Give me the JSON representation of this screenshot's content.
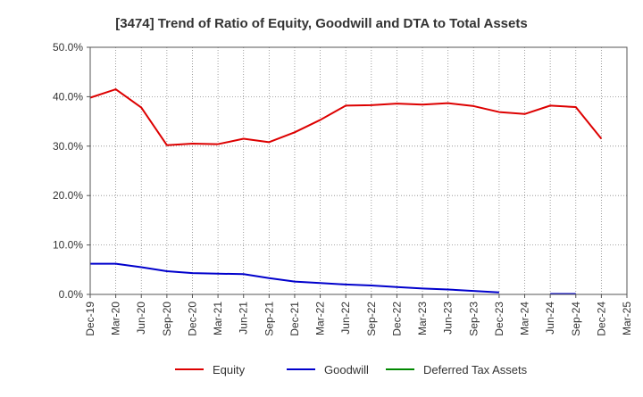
{
  "chart_data": {
    "type": "line",
    "title": "[3474]  Trend of Ratio of Equity, Goodwill and DTA to Total Assets",
    "xlabel": "",
    "ylabel": "",
    "ylim": [
      0,
      50
    ],
    "yticks": [
      0,
      10,
      20,
      30,
      40,
      50
    ],
    "ytick_labels": [
      "0.0%",
      "10.0%",
      "20.0%",
      "30.0%",
      "40.0%",
      "50.0%"
    ],
    "categories": [
      "Dec-19",
      "Mar-20",
      "Jun-20",
      "Sep-20",
      "Dec-20",
      "Mar-21",
      "Jun-21",
      "Sep-21",
      "Dec-21",
      "Mar-22",
      "Jun-22",
      "Sep-22",
      "Dec-22",
      "Mar-23",
      "Jun-23",
      "Sep-23",
      "Dec-23",
      "Mar-24",
      "Jun-24",
      "Sep-24",
      "Dec-24",
      "Mar-25"
    ],
    "grid": true,
    "legend_position": "bottom",
    "series": [
      {
        "name": "Equity",
        "color": "#dd0000",
        "values": [
          39.8,
          41.5,
          37.8,
          30.2,
          30.5,
          30.4,
          31.5,
          30.8,
          32.8,
          35.3,
          38.2,
          38.3,
          38.6,
          38.4,
          38.7,
          38.1,
          36.9,
          36.5,
          38.2,
          37.9,
          31.5,
          null
        ]
      },
      {
        "name": "Goodwill",
        "color": "#0000cc",
        "values": [
          6.2,
          6.2,
          5.5,
          4.7,
          4.3,
          4.2,
          4.1,
          3.3,
          2.6,
          2.3,
          2.0,
          1.8,
          1.5,
          1.2,
          1.0,
          0.7,
          0.4,
          null,
          0.1,
          0.1,
          null,
          null
        ]
      },
      {
        "name": "Deferred Tax Assets",
        "color": "#008800",
        "values": [
          null,
          null,
          null,
          null,
          null,
          null,
          null,
          null,
          null,
          null,
          null,
          null,
          null,
          null,
          null,
          null,
          null,
          null,
          null,
          null,
          null,
          null
        ]
      }
    ]
  }
}
